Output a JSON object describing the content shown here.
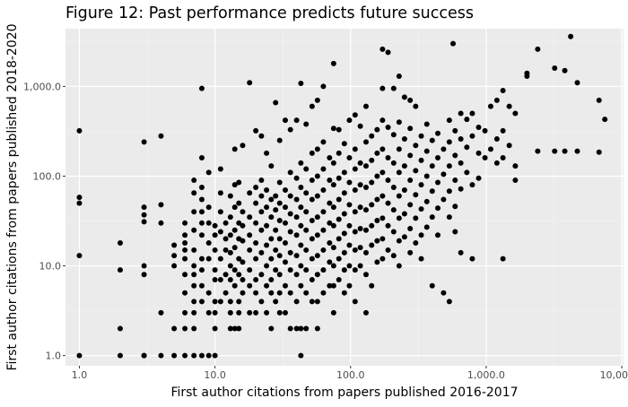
{
  "chart_data": {
    "type": "scatter",
    "title": "Figure 12: Past performance predicts future success",
    "xlabel": "First author citations from papers published 2016-2017",
    "ylabel": "First author citations from papers published 2018-2020",
    "xscale": "log10",
    "yscale": "log10",
    "xlim": [
      0.79,
      10300
    ],
    "ylim": [
      0.77,
      4400
    ],
    "xticks": [
      1,
      10,
      100,
      1000,
      10000
    ],
    "xtick_labels": [
      "1.0",
      "10.0",
      "100.0",
      "1,000.0",
      "10,000.0"
    ],
    "yticks": [
      1,
      10,
      100,
      1000
    ],
    "ytick_labels": [
      "1.0",
      "10.0",
      "100.0",
      "1,000.0"
    ],
    "grid": true,
    "colors": {
      "panel": "#ebebeb",
      "grid_major": "#ffffff",
      "grid_minor": "#f4f4f4",
      "point": "#000000"
    },
    "points": [
      [
        1,
        320
      ],
      [
        1,
        58
      ],
      [
        1,
        50
      ],
      [
        1,
        13
      ],
      [
        1,
        1
      ],
      [
        2,
        18
      ],
      [
        2,
        9
      ],
      [
        2,
        2
      ],
      [
        2,
        1
      ],
      [
        3,
        240
      ],
      [
        3,
        45
      ],
      [
        3,
        37
      ],
      [
        3,
        31
      ],
      [
        3,
        10
      ],
      [
        3,
        8
      ],
      [
        3,
        1
      ],
      [
        3,
        1
      ],
      [
        4,
        280
      ],
      [
        4,
        48
      ],
      [
        4,
        30
      ],
      [
        4,
        3
      ],
      [
        4,
        1
      ],
      [
        5,
        17
      ],
      [
        5,
        13
      ],
      [
        5,
        10
      ],
      [
        5,
        2
      ],
      [
        5,
        1
      ],
      [
        6,
        30
      ],
      [
        6,
        22
      ],
      [
        6,
        18
      ],
      [
        6,
        15
      ],
      [
        6,
        12
      ],
      [
        6,
        8
      ],
      [
        6,
        5
      ],
      [
        6,
        3
      ],
      [
        6,
        2
      ],
      [
        6,
        1
      ],
      [
        7,
        90
      ],
      [
        7,
        65
      ],
      [
        7,
        40
      ],
      [
        7,
        25
      ],
      [
        7,
        15
      ],
      [
        7,
        10
      ],
      [
        7,
        8
      ],
      [
        7,
        6
      ],
      [
        7,
        4
      ],
      [
        7,
        3
      ],
      [
        7,
        2
      ],
      [
        7,
        1
      ],
      [
        8,
        950
      ],
      [
        8,
        160
      ],
      [
        8,
        75
      ],
      [
        8,
        55
      ],
      [
        8,
        40
      ],
      [
        8,
        30
      ],
      [
        8,
        22
      ],
      [
        8,
        12
      ],
      [
        8,
        9
      ],
      [
        8,
        6
      ],
      [
        8,
        4
      ],
      [
        8,
        1
      ],
      [
        9,
        110
      ],
      [
        9,
        45
      ],
      [
        9,
        30
      ],
      [
        9,
        18
      ],
      [
        9,
        12
      ],
      [
        9,
        5
      ],
      [
        9,
        3
      ],
      [
        9,
        1
      ],
      [
        10,
        28
      ],
      [
        10,
        22
      ],
      [
        10,
        15
      ],
      [
        10,
        9
      ],
      [
        10,
        7
      ],
      [
        10,
        4
      ],
      [
        10,
        3
      ],
      [
        10,
        2
      ],
      [
        10,
        1
      ],
      [
        11,
        120
      ],
      [
        11,
        65
      ],
      [
        11,
        40
      ],
      [
        11,
        24
      ],
      [
        11,
        12
      ],
      [
        11,
        7
      ],
      [
        11,
        4
      ],
      [
        12,
        30
      ],
      [
        12,
        20
      ],
      [
        12,
        15
      ],
      [
        12,
        8
      ],
      [
        12,
        5
      ],
      [
        13,
        60
      ],
      [
        13,
        35
      ],
      [
        13,
        22
      ],
      [
        13,
        14
      ],
      [
        13,
        10
      ],
      [
        13,
        7
      ],
      [
        13,
        4
      ],
      [
        13,
        3
      ],
      [
        13,
        2
      ],
      [
        14,
        200
      ],
      [
        14,
        80
      ],
      [
        14,
        45
      ],
      [
        14,
        25
      ],
      [
        14,
        16
      ],
      [
        14,
        9
      ],
      [
        14,
        6
      ],
      [
        14,
        2
      ],
      [
        15,
        85
      ],
      [
        15,
        50
      ],
      [
        15,
        30
      ],
      [
        15,
        20
      ],
      [
        15,
        12
      ],
      [
        15,
        8
      ],
      [
        15,
        4
      ],
      [
        15,
        3
      ],
      [
        15,
        2
      ],
      [
        16,
        220
      ],
      [
        16,
        40
      ],
      [
        16,
        28
      ],
      [
        16,
        19
      ],
      [
        16,
        11
      ],
      [
        16,
        7
      ],
      [
        16,
        5
      ],
      [
        18,
        1100
      ],
      [
        18,
        65
      ],
      [
        18,
        35
      ],
      [
        18,
        22
      ],
      [
        18,
        15
      ],
      [
        18,
        9
      ],
      [
        18,
        6
      ],
      [
        18,
        3
      ],
      [
        20,
        320
      ],
      [
        20,
        75
      ],
      [
        20,
        50
      ],
      [
        20,
        30
      ],
      [
        20,
        18
      ],
      [
        20,
        12
      ],
      [
        20,
        7
      ],
      [
        20,
        5
      ],
      [
        20,
        3
      ],
      [
        22,
        280
      ],
      [
        22,
        90
      ],
      [
        22,
        60
      ],
      [
        22,
        40
      ],
      [
        22,
        25
      ],
      [
        22,
        14
      ],
      [
        22,
        8
      ],
      [
        22,
        4
      ],
      [
        24,
        180
      ],
      [
        24,
        70
      ],
      [
        24,
        45
      ],
      [
        24,
        28
      ],
      [
        24,
        17
      ],
      [
        24,
        10
      ],
      [
        24,
        6
      ],
      [
        24,
        3
      ],
      [
        26,
        130
      ],
      [
        26,
        55
      ],
      [
        26,
        35
      ],
      [
        26,
        20
      ],
      [
        26,
        12
      ],
      [
        26,
        7
      ],
      [
        26,
        5
      ],
      [
        26,
        2
      ],
      [
        28,
        660
      ],
      [
        28,
        60
      ],
      [
        28,
        42
      ],
      [
        28,
        25
      ],
      [
        28,
        15
      ],
      [
        28,
        9
      ],
      [
        28,
        4
      ],
      [
        30,
        250
      ],
      [
        30,
        85
      ],
      [
        30,
        50
      ],
      [
        30,
        32
      ],
      [
        30,
        20
      ],
      [
        30,
        13
      ],
      [
        30,
        8
      ],
      [
        30,
        5
      ],
      [
        30,
        3
      ],
      [
        33,
        420
      ],
      [
        33,
        70
      ],
      [
        33,
        45
      ],
      [
        33,
        30
      ],
      [
        33,
        18
      ],
      [
        33,
        11
      ],
      [
        33,
        6
      ],
      [
        33,
        3
      ],
      [
        36,
        330
      ],
      [
        36,
        110
      ],
      [
        36,
        60
      ],
      [
        36,
        38
      ],
      [
        36,
        24
      ],
      [
        36,
        14
      ],
      [
        36,
        9
      ],
      [
        36,
        5
      ],
      [
        36,
        2
      ],
      [
        40,
        420
      ],
      [
        40,
        95
      ],
      [
        40,
        55
      ],
      [
        40,
        35
      ],
      [
        40,
        22
      ],
      [
        40,
        13
      ],
      [
        40,
        8
      ],
      [
        40,
        4
      ],
      [
        40,
        2
      ],
      [
        43,
        1080
      ],
      [
        43,
        140
      ],
      [
        43,
        75
      ],
      [
        43,
        45
      ],
      [
        43,
        28
      ],
      [
        43,
        17
      ],
      [
        43,
        10
      ],
      [
        43,
        6
      ],
      [
        43,
        2
      ],
      [
        43,
        1
      ],
      [
        47,
        380
      ],
      [
        47,
        120
      ],
      [
        47,
        65
      ],
      [
        47,
        40
      ],
      [
        47,
        25
      ],
      [
        47,
        15
      ],
      [
        47,
        9
      ],
      [
        47,
        5
      ],
      [
        47,
        2
      ],
      [
        52,
        600
      ],
      [
        52,
        180
      ],
      [
        52,
        90
      ],
      [
        52,
        55
      ],
      [
        52,
        32
      ],
      [
        52,
        20
      ],
      [
        52,
        12
      ],
      [
        52,
        7
      ],
      [
        52,
        4
      ],
      [
        57,
        700
      ],
      [
        57,
        200
      ],
      [
        57,
        100
      ],
      [
        57,
        60
      ],
      [
        57,
        35
      ],
      [
        57,
        22
      ],
      [
        57,
        13
      ],
      [
        57,
        8
      ],
      [
        57,
        4
      ],
      [
        57,
        2
      ],
      [
        63,
        1000
      ],
      [
        63,
        240
      ],
      [
        63,
        120
      ],
      [
        63,
        70
      ],
      [
        63,
        40
      ],
      [
        63,
        25
      ],
      [
        63,
        15
      ],
      [
        63,
        9
      ],
      [
        63,
        5
      ],
      [
        70,
        160
      ],
      [
        70,
        90
      ],
      [
        70,
        50
      ],
      [
        70,
        30
      ],
      [
        70,
        18
      ],
      [
        70,
        11
      ],
      [
        70,
        6
      ],
      [
        75,
        1800
      ],
      [
        75,
        340
      ],
      [
        75,
        140
      ],
      [
        75,
        80
      ],
      [
        75,
        45
      ],
      [
        75,
        28
      ],
      [
        75,
        16
      ],
      [
        75,
        10
      ],
      [
        75,
        6
      ],
      [
        75,
        3
      ],
      [
        82,
        330
      ],
      [
        82,
        180
      ],
      [
        82,
        95
      ],
      [
        82,
        55
      ],
      [
        82,
        33
      ],
      [
        82,
        20
      ],
      [
        82,
        12
      ],
      [
        82,
        7
      ],
      [
        90,
        230
      ],
      [
        90,
        110
      ],
      [
        90,
        65
      ],
      [
        90,
        38
      ],
      [
        90,
        23
      ],
      [
        90,
        14
      ],
      [
        90,
        9
      ],
      [
        90,
        5
      ],
      [
        98,
        420
      ],
      [
        98,
        160
      ],
      [
        98,
        85
      ],
      [
        98,
        48
      ],
      [
        98,
        28
      ],
      [
        98,
        17
      ],
      [
        98,
        10
      ],
      [
        98,
        6
      ],
      [
        108,
        480
      ],
      [
        108,
        200
      ],
      [
        108,
        120
      ],
      [
        108,
        70
      ],
      [
        108,
        40
      ],
      [
        108,
        24
      ],
      [
        108,
        15
      ],
      [
        108,
        9
      ],
      [
        108,
        4
      ],
      [
        118,
        360
      ],
      [
        118,
        140
      ],
      [
        118,
        80
      ],
      [
        118,
        45
      ],
      [
        118,
        26
      ],
      [
        118,
        16
      ],
      [
        118,
        10
      ],
      [
        130,
        600
      ],
      [
        130,
        240
      ],
      [
        130,
        130
      ],
      [
        130,
        75
      ],
      [
        130,
        42
      ],
      [
        130,
        25
      ],
      [
        130,
        14
      ],
      [
        130,
        8
      ],
      [
        130,
        3
      ],
      [
        143,
        280
      ],
      [
        143,
        150
      ],
      [
        143,
        85
      ],
      [
        143,
        48
      ],
      [
        143,
        28
      ],
      [
        143,
        17
      ],
      [
        143,
        6
      ],
      [
        157,
        330
      ],
      [
        157,
        180
      ],
      [
        157,
        100
      ],
      [
        157,
        55
      ],
      [
        157,
        32
      ],
      [
        157,
        19
      ],
      [
        157,
        11
      ],
      [
        172,
        2600
      ],
      [
        172,
        950
      ],
      [
        172,
        420
      ],
      [
        172,
        200
      ],
      [
        172,
        110
      ],
      [
        172,
        60
      ],
      [
        172,
        34
      ],
      [
        172,
        20
      ],
      [
        172,
        12
      ],
      [
        189,
        2400
      ],
      [
        189,
        350
      ],
      [
        189,
        160
      ],
      [
        189,
        90
      ],
      [
        189,
        50
      ],
      [
        189,
        28
      ],
      [
        189,
        15
      ],
      [
        208,
        950
      ],
      [
        208,
        290
      ],
      [
        208,
        140
      ],
      [
        208,
        75
      ],
      [
        208,
        42
      ],
      [
        208,
        24
      ],
      [
        208,
        13
      ],
      [
        228,
        1300
      ],
      [
        228,
        400
      ],
      [
        228,
        200
      ],
      [
        228,
        110
      ],
      [
        228,
        60
      ],
      [
        228,
        34
      ],
      [
        228,
        19
      ],
      [
        228,
        10
      ],
      [
        250,
        760
      ],
      [
        250,
        260
      ],
      [
        250,
        130
      ],
      [
        250,
        70
      ],
      [
        250,
        38
      ],
      [
        250,
        21
      ],
      [
        275,
        700
      ],
      [
        275,
        340
      ],
      [
        275,
        170
      ],
      [
        275,
        90
      ],
      [
        275,
        48
      ],
      [
        275,
        26
      ],
      [
        275,
        14
      ],
      [
        302,
        600
      ],
      [
        302,
        220
      ],
      [
        302,
        115
      ],
      [
        302,
        62
      ],
      [
        302,
        34
      ],
      [
        302,
        18
      ],
      [
        332,
        280
      ],
      [
        332,
        150
      ],
      [
        332,
        80
      ],
      [
        332,
        43
      ],
      [
        332,
        22
      ],
      [
        332,
        12
      ],
      [
        365,
        380
      ],
      [
        365,
        190
      ],
      [
        365,
        100
      ],
      [
        365,
        52
      ],
      [
        365,
        27
      ],
      [
        400,
        250
      ],
      [
        400,
        130
      ],
      [
        400,
        68
      ],
      [
        400,
        35
      ],
      [
        400,
        6
      ],
      [
        440,
        300
      ],
      [
        440,
        160
      ],
      [
        440,
        85
      ],
      [
        440,
        44
      ],
      [
        440,
        22
      ],
      [
        485,
        200
      ],
      [
        485,
        105
      ],
      [
        485,
        55
      ],
      [
        485,
        5
      ],
      [
        535,
        420
      ],
      [
        535,
        240
      ],
      [
        535,
        130
      ],
      [
        535,
        68
      ],
      [
        535,
        35
      ],
      [
        535,
        4
      ],
      [
        570,
        3000
      ],
      [
        590,
        320
      ],
      [
        590,
        170
      ],
      [
        590,
        90
      ],
      [
        590,
        46
      ],
      [
        590,
        24
      ],
      [
        650,
        500
      ],
      [
        650,
        260
      ],
      [
        650,
        140
      ],
      [
        650,
        72
      ],
      [
        650,
        14
      ],
      [
        720,
        430
      ],
      [
        720,
        210
      ],
      [
        720,
        110
      ],
      [
        790,
        500
      ],
      [
        790,
        280
      ],
      [
        790,
        80
      ],
      [
        790,
        12
      ],
      [
        880,
        350
      ],
      [
        880,
        180
      ],
      [
        880,
        95
      ],
      [
        980,
        320
      ],
      [
        980,
        160
      ],
      [
        1080,
        600
      ],
      [
        1080,
        200
      ],
      [
        1200,
        700
      ],
      [
        1200,
        260
      ],
      [
        1200,
        140
      ],
      [
        1330,
        900
      ],
      [
        1330,
        320
      ],
      [
        1330,
        160
      ],
      [
        1330,
        12
      ],
      [
        1480,
        600
      ],
      [
        1480,
        220
      ],
      [
        1640,
        500
      ],
      [
        1640,
        130
      ],
      [
        1640,
        90
      ],
      [
        2000,
        1400
      ],
      [
        2000,
        1300
      ],
      [
        2400,
        2600
      ],
      [
        2400,
        190
      ],
      [
        3200,
        1600
      ],
      [
        3200,
        190
      ],
      [
        3800,
        1500
      ],
      [
        3800,
        190
      ],
      [
        4200,
        3600
      ],
      [
        4700,
        1100
      ],
      [
        4700,
        190
      ],
      [
        6800,
        700
      ],
      [
        6800,
        185
      ],
      [
        7500,
        430
      ]
    ]
  }
}
